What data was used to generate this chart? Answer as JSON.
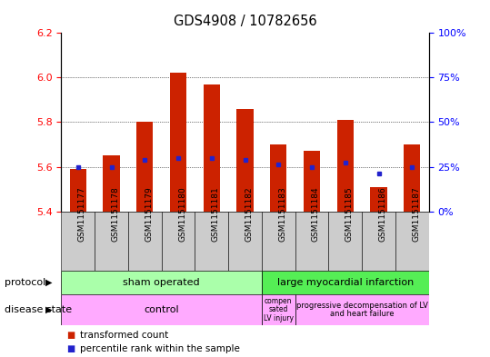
{
  "title": "GDS4908 / 10782656",
  "samples": [
    "GSM1151177",
    "GSM1151178",
    "GSM1151179",
    "GSM1151180",
    "GSM1151181",
    "GSM1151182",
    "GSM1151183",
    "GSM1151184",
    "GSM1151185",
    "GSM1151186",
    "GSM1151187"
  ],
  "bar_values": [
    5.59,
    5.65,
    5.8,
    6.02,
    5.97,
    5.86,
    5.7,
    5.67,
    5.81,
    5.51,
    5.7
  ],
  "bar_bottom": 5.4,
  "percentile_values": [
    5.6,
    5.6,
    5.63,
    5.64,
    5.64,
    5.63,
    5.61,
    5.6,
    5.62,
    5.57,
    5.6
  ],
  "bar_color": "#cc2200",
  "percentile_color": "#2222cc",
  "ylim_left": [
    5.4,
    6.2
  ],
  "ylim_right": [
    0,
    100
  ],
  "yticks_left": [
    5.4,
    5.6,
    5.8,
    6.0,
    6.2
  ],
  "yticks_right": [
    0,
    25,
    50,
    75,
    100
  ],
  "ytick_labels_right": [
    "0%",
    "25%",
    "50%",
    "75%",
    "100%"
  ],
  "grid_values": [
    5.6,
    5.8,
    6.0
  ],
  "protocol_sham_label": "sham operated",
  "protocol_large_label": "large myocardial infarction",
  "protocol_sham_color": "#aaffaa",
  "protocol_large_color": "#55ee55",
  "disease_control_label": "control",
  "disease_comp_label": "compen\nsated\nLV injury",
  "disease_prog_label": "progressive decompensation of LV\nand heart failure",
  "disease_color": "#ffaaff",
  "legend_bar_label": "transformed count",
  "legend_pct_label": "percentile rank within the sample",
  "bg_color": "#cccccc",
  "plot_bg": "#ffffff",
  "n_sham": 6,
  "n_large": 5,
  "n_control": 6,
  "n_comp": 1,
  "n_prog": 4
}
